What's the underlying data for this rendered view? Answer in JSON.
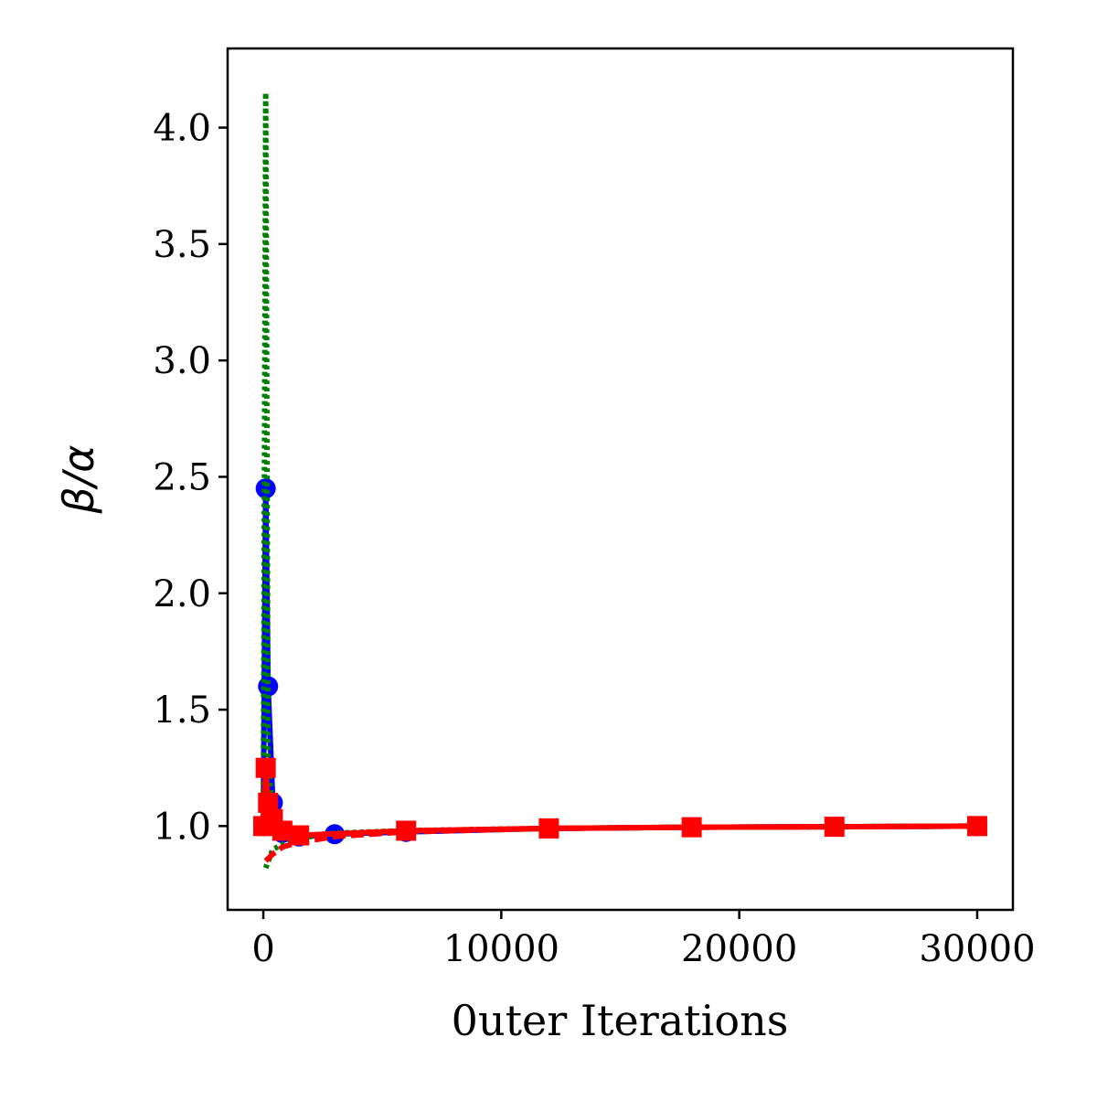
{
  "chart_data": {
    "type": "line",
    "xlabel": "0uter Iterations",
    "ylabel": "β/α",
    "xlim": [
      -1500,
      31500
    ],
    "ylim": [
      0.64,
      4.34
    ],
    "xticks": [
      0,
      10000,
      20000,
      30000
    ],
    "yticks": [
      {
        "value": 1,
        "label": "1.0"
      },
      1.5,
      {
        "value": 2,
        "label": "2.0"
      },
      2.5,
      {
        "value": 3,
        "label": "3.0"
      },
      3.5,
      {
        "value": 4,
        "label": "4.0"
      }
    ],
    "grid": false,
    "series": [
      {
        "color": "#0000ff",
        "style": "solid",
        "marker": "circle",
        "x": [
          0,
          100,
          200,
          400,
          800,
          1500,
          3000,
          6000,
          12000,
          18000,
          24000,
          30000
        ],
        "values": [
          1.0,
          2.45,
          1.6,
          1.1,
          0.97,
          0.955,
          0.965,
          0.975,
          0.99,
          0.995,
          0.997,
          1.0
        ]
      },
      {
        "color": "#008000",
        "style": "dotted",
        "x": [
          0,
          100,
          200,
          400,
          800,
          1500,
          3000,
          6000,
          12000,
          18000,
          24000,
          30000
        ],
        "values": [
          1.05,
          4.15,
          1.3,
          1.02,
          0.97,
          0.955,
          0.97,
          0.98,
          0.99,
          0.995,
          0.997,
          1.0
        ]
      },
      {
        "color": "#008000",
        "style": "dotted",
        "x": [
          100,
          400,
          800,
          1500,
          3000,
          6000,
          12000,
          18000,
          24000,
          30000
        ],
        "values": [
          0.82,
          0.9,
          0.92,
          0.95,
          0.965,
          0.98,
          0.99,
          0.995,
          0.997,
          1.0
        ]
      },
      {
        "color": "#ff0000",
        "style": "dashed",
        "x": [
          100,
          400,
          800,
          1500,
          3000,
          6000,
          12000,
          18000,
          24000,
          30000
        ],
        "values": [
          0.85,
          0.88,
          0.91,
          0.93,
          0.955,
          0.975,
          0.99,
          0.995,
          0.997,
          1.0
        ]
      },
      {
        "color": "#ff0000",
        "style": "solid",
        "marker": "square",
        "x": [
          0,
          100,
          200,
          400,
          800,
          1500,
          6000,
          12000,
          18000,
          24000,
          30000
        ],
        "values": [
          1.0,
          1.25,
          1.1,
          1.03,
          0.98,
          0.96,
          0.98,
          0.99,
          0.995,
          0.997,
          1.0
        ]
      }
    ]
  }
}
